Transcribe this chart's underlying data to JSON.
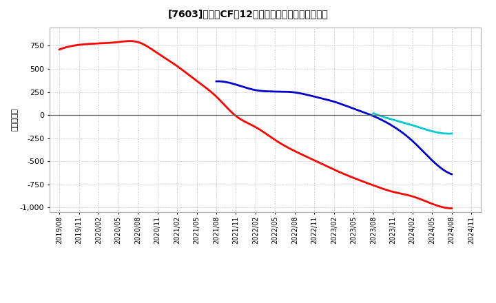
{
  "title": "[7603]　営業CFだ12か月移動合計の平均値の推移",
  "ylabel": "（百万円）",
  "background_color": "#ffffff",
  "plot_bg_color": "#ffffff",
  "grid_color": "#bbbbbb",
  "ylim": [
    -1050,
    950
  ],
  "yticks": [
    -1000,
    -750,
    -500,
    -250,
    0,
    250,
    500,
    750
  ],
  "series": {
    "3年": {
      "color": "#ff0000",
      "data": [
        [
          "2019/08",
          710
        ],
        [
          "2019/11",
          760
        ],
        [
          "2020/02",
          775
        ],
        [
          "2020/05",
          790
        ],
        [
          "2020/08",
          790
        ],
        [
          "2020/11",
          670
        ],
        [
          "2021/02",
          530
        ],
        [
          "2021/05",
          370
        ],
        [
          "2021/08",
          200
        ],
        [
          "2021/11",
          -10
        ],
        [
          "2022/02",
          -130
        ],
        [
          "2022/05",
          -270
        ],
        [
          "2022/08",
          -390
        ],
        [
          "2022/11",
          -490
        ],
        [
          "2023/02",
          -590
        ],
        [
          "2023/05",
          -680
        ],
        [
          "2023/08",
          -760
        ],
        [
          "2023/11",
          -830
        ],
        [
          "2024/02",
          -880
        ],
        [
          "2024/05",
          -960
        ],
        [
          "2024/08",
          -1010
        ]
      ]
    },
    "5年": {
      "color": "#0000cc",
      "data": [
        [
          "2021/08",
          365
        ],
        [
          "2021/11",
          330
        ],
        [
          "2022/02",
          270
        ],
        [
          "2022/05",
          255
        ],
        [
          "2022/08",
          245
        ],
        [
          "2022/11",
          200
        ],
        [
          "2023/02",
          145
        ],
        [
          "2023/05",
          70
        ],
        [
          "2023/08",
          -10
        ],
        [
          "2023/11",
          -120
        ],
        [
          "2024/02",
          -280
        ],
        [
          "2024/05",
          -490
        ],
        [
          "2024/08",
          -640
        ]
      ]
    },
    "7年": {
      "color": "#00cccc",
      "data": [
        [
          "2023/08",
          20
        ],
        [
          "2023/11",
          -50
        ],
        [
          "2024/02",
          -110
        ],
        [
          "2024/05",
          -175
        ],
        [
          "2024/08",
          -200
        ]
      ]
    },
    "10年": {
      "color": "#008000",
      "data": []
    }
  },
  "xtick_labels": [
    "2019/08",
    "2019/11",
    "2020/02",
    "2020/05",
    "2020/08",
    "2020/11",
    "2021/02",
    "2021/05",
    "2021/08",
    "2021/11",
    "2022/02",
    "2022/05",
    "2022/08",
    "2022/11",
    "2023/02",
    "2023/05",
    "2023/08",
    "2023/11",
    "2024/02",
    "2024/05",
    "2024/08",
    "2024/11"
  ]
}
